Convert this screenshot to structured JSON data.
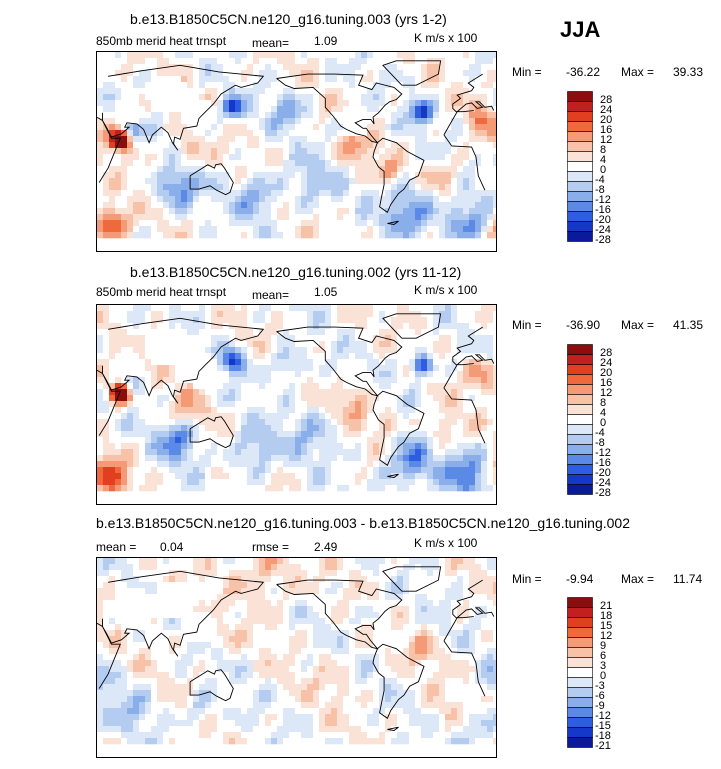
{
  "season_label": "JJA",
  "panels": [
    {
      "title": "b.e13.B1850C5CN.ne120_g16.tuning.003 (yrs 1-2)",
      "variable": "850mb merid heat trnspt",
      "stat1_label": "mean=",
      "stat1_value": "1.09",
      "units": "K m/s x 100",
      "min_label": "Min =",
      "min_value": "-36.22",
      "max_label": "Max =",
      "max_value": "39.33",
      "colorbar_levels": [
        "28",
        "24",
        "20",
        "16",
        "12",
        "8",
        "4",
        "0",
        "-4",
        "-8",
        "-12",
        "-16",
        "-20",
        "-24",
        "-28"
      ]
    },
    {
      "title": "b.e13.B1850C5CN.ne120_g16.tuning.002 (yrs 11-12)",
      "variable": "850mb merid heat trnspt",
      "stat1_label": "mean=",
      "stat1_value": "1.05",
      "units": "K m/s x 100",
      "min_label": "Min =",
      "min_value": "-36.90",
      "max_label": "Max =",
      "max_value": "41.35",
      "colorbar_levels": [
        "28",
        "24",
        "20",
        "16",
        "12",
        "8",
        "4",
        "0",
        "-4",
        "-8",
        "-12",
        "-16",
        "-20",
        "-24",
        "-28"
      ]
    },
    {
      "title": "b.e13.B1850C5CN.ne120_g16.tuning.003 - b.e13.B1850C5CN.ne120_g16.tuning.002",
      "stat1_label": "mean =",
      "stat1_value": "0.04",
      "stat2_label": "rmse =",
      "stat2_value": "2.49",
      "units": "K m/s x 100",
      "min_label": "Min =",
      "min_value": "-9.94",
      "max_label": "Max =",
      "max_value": "11.74",
      "colorbar_levels": [
        "21",
        "18",
        "15",
        "12",
        "9",
        "6",
        "3",
        "0",
        "-3",
        "-6",
        "-9",
        "-12",
        "-15",
        "-18",
        "-21"
      ]
    }
  ],
  "chart_data": {
    "type": "heatmap",
    "title": "850mb merid heat trnspt (JJA)",
    "units": "K m/s x 100",
    "panels": [
      {
        "name": "b.e13.B1850C5CN.ne120_g16.tuning.003 (yrs 1-2)",
        "mean": 1.09,
        "min": -36.22,
        "max": 39.33,
        "levels": [
          -28,
          -24,
          -20,
          -16,
          -12,
          -8,
          -4,
          0,
          4,
          8,
          12,
          16,
          20,
          24,
          28
        ]
      },
      {
        "name": "b.e13.B1850C5CN.ne120_g16.tuning.002 (yrs 11-12)",
        "mean": 1.05,
        "min": -36.9,
        "max": 41.35,
        "levels": [
          -28,
          -24,
          -20,
          -16,
          -12,
          -8,
          -4,
          0,
          4,
          8,
          12,
          16,
          20,
          24,
          28
        ]
      },
      {
        "name": "b.e13.B1850C5CN.ne120_g16.tuning.003 - b.e13.B1850C5CN.ne120_g16.tuning.002",
        "mean": 0.04,
        "rmse": 2.49,
        "min": -9.94,
        "max": 11.74,
        "levels": [
          -21,
          -18,
          -15,
          -12,
          -9,
          -6,
          -3,
          0,
          3,
          6,
          9,
          12,
          15,
          18,
          21
        ]
      }
    ],
    "colors": [
      "#8c0d0d",
      "#c22020",
      "#e0401f",
      "#f0693d",
      "#f59a77",
      "#f8c2a8",
      "#fbe2d6",
      "#ffffff",
      "#dce8f8",
      "#b4ccf0",
      "#8aaeea",
      "#5a89e6",
      "#2e5ee0",
      "#1538c8",
      "#0a1a9a"
    ]
  }
}
